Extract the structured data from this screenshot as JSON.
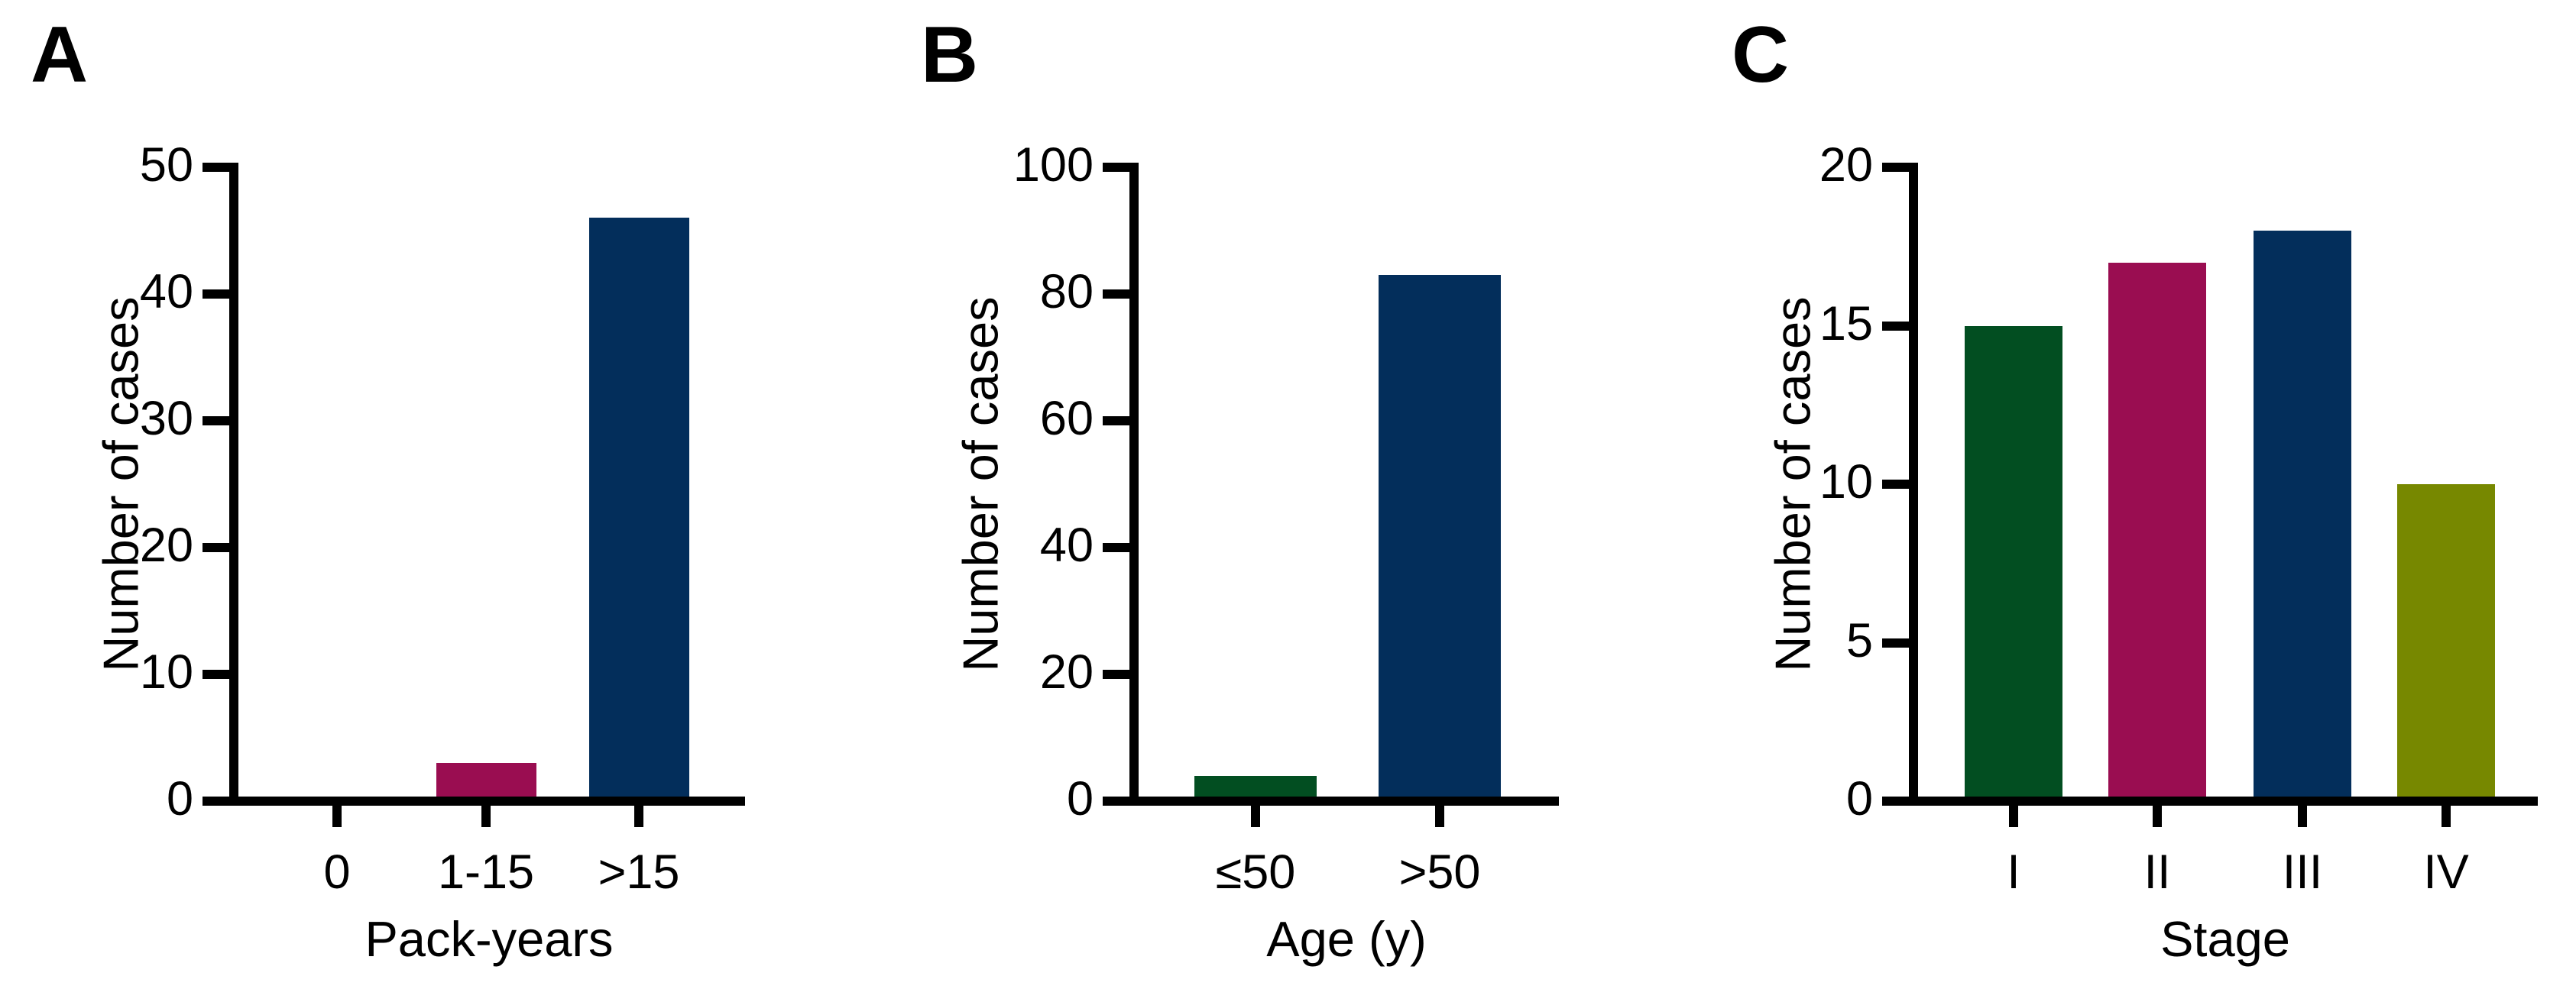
{
  "figure": {
    "background": "#ffffff",
    "text_color": "#000000",
    "axis_color": "#000000"
  },
  "chart_data": [
    {
      "type": "bar",
      "panel": "A",
      "categories": [
        "0",
        "1-15",
        ">15"
      ],
      "values": [
        0,
        3,
        46
      ],
      "bar_colors": [
        "none",
        "#9A0D51",
        "#032E5B"
      ],
      "xlabel": "Pack-years",
      "ylabel": "Number of cases",
      "ylim": [
        0,
        50
      ],
      "yticks": [
        0,
        10,
        20,
        30,
        40,
        50
      ],
      "grid": "off",
      "legend": "none"
    },
    {
      "type": "bar",
      "panel": "B",
      "categories": [
        "≤50",
        ">50"
      ],
      "values": [
        4,
        83
      ],
      "bar_colors": [
        "#024E21",
        "#032E5B"
      ],
      "xlabel": "Age (y)",
      "ylabel": "Number of cases",
      "ylim": [
        0,
        100
      ],
      "yticks": [
        0,
        20,
        40,
        60,
        80,
        100
      ],
      "grid": "off",
      "legend": "none"
    },
    {
      "type": "bar",
      "panel": "C",
      "categories": [
        "I",
        "II",
        "III",
        "IV"
      ],
      "values": [
        15,
        17,
        18,
        10
      ],
      "bar_colors": [
        "#024E21",
        "#9A0D51",
        "#032E5B",
        "#778800"
      ],
      "xlabel": "Stage",
      "ylabel": "Number of cases",
      "ylim": [
        0,
        20
      ],
      "yticks": [
        0,
        5,
        10,
        15,
        20
      ],
      "grid": "off",
      "legend": "none"
    }
  ]
}
